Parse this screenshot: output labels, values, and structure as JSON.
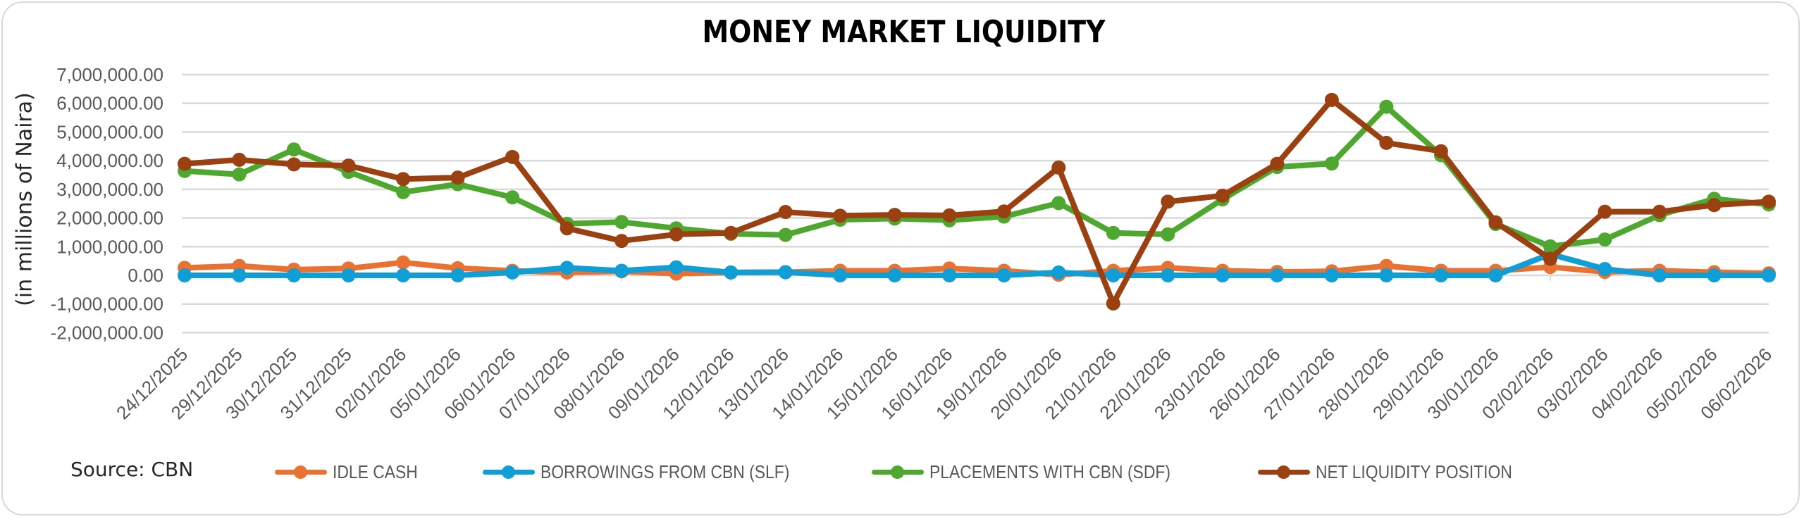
{
  "title": "MONEY MARKET LIQUIDITY",
  "source_note": "Source: CBN",
  "colors": {
    "idle_cash": "#E97132",
    "slf": "#0F9ED5",
    "sdf": "#4EA72E",
    "net": "#9A4011",
    "grid": "#d9d9d9",
    "axis_text": "#595959"
  },
  "legend": [
    {
      "label": "IDLE CASH",
      "color": "#E97132"
    },
    {
      "label": "BORROWINGS FROM CBN (SLF)",
      "color": "#0F9ED5"
    },
    {
      "label": "PLACEMENTS WITH CBN (SDF)",
      "color": "#4EA72E"
    },
    {
      "label": "NET LIQUIDITY POSITION",
      "color": "#9A4011"
    }
  ],
  "chart_data": {
    "type": "line",
    "title": "MONEY MARKET LIQUIDITY",
    "xlabel": "",
    "ylabel": "(in millions of Naira)",
    "ylim": [
      -2000000,
      7000000
    ],
    "yticks": [
      7000000,
      6000000,
      5000000,
      4000000,
      3000000,
      2000000,
      1000000,
      0,
      -1000000,
      -2000000
    ],
    "ytick_labels": [
      "7,000,000.00",
      "6,000,000.00",
      "5,000,000.00",
      "4,000,000.00",
      "3,000,000.00",
      "2,000,000.00",
      "1,000,000.00",
      "0.00",
      "-1,000,000.00",
      "-2,000,000.00"
    ],
    "grid": true,
    "legend_position": "bottom",
    "categories": [
      "24/12/2025",
      "29/12/2025",
      "30/12/2025",
      "31/12/2025",
      "02/01/2026",
      "05/01/2026",
      "06/01/2026",
      "07/01/2026",
      "08/01/2026",
      "09/01/2026",
      "12/01/2026",
      "13/01/2026",
      "14/01/2026",
      "15/01/2026",
      "16/01/2026",
      "19/01/2026",
      "20/01/2026",
      "21/01/2026",
      "22/01/2026",
      "23/01/2026",
      "26/01/2026",
      "27/01/2026",
      "28/01/2026",
      "29/01/2026",
      "30/01/2026",
      "02/02/2026",
      "03/02/2026",
      "04/02/2026",
      "05/02/2026",
      "06/02/2026"
    ],
    "series": [
      {
        "name": "IDLE CASH",
        "color": "#E97132",
        "values": [
          260000,
          330000,
          200000,
          240000,
          450000,
          250000,
          160000,
          100000,
          140000,
          60000,
          100000,
          110000,
          160000,
          160000,
          240000,
          160000,
          20000,
          160000,
          260000,
          160000,
          120000,
          140000,
          330000,
          160000,
          160000,
          290000,
          120000,
          160000,
          110000,
          70000
        ]
      },
      {
        "name": "BORROWINGS FROM CBN (SLF)",
        "color": "#0F9ED5",
        "values": [
          0,
          0,
          0,
          0,
          0,
          0,
          100000,
          260000,
          160000,
          280000,
          100000,
          110000,
          0,
          0,
          0,
          0,
          100000,
          0,
          0,
          0,
          0,
          0,
          0,
          0,
          0,
          740000,
          220000,
          0,
          0,
          0
        ]
      },
      {
        "name": "PLACEMENTS WITH CBN (SDF)",
        "color": "#4EA72E",
        "values": [
          3640000,
          3520000,
          4390000,
          3610000,
          2900000,
          3180000,
          2720000,
          1800000,
          1860000,
          1640000,
          1450000,
          1410000,
          1940000,
          1980000,
          1920000,
          2050000,
          2520000,
          1480000,
          1430000,
          2650000,
          3780000,
          3900000,
          5880000,
          4190000,
          1790000,
          1010000,
          1250000,
          2100000,
          2670000,
          2470000
        ]
      },
      {
        "name": "NET LIQUIDITY POSITION",
        "color": "#9A4011",
        "values": [
          3890000,
          4030000,
          3870000,
          3830000,
          3360000,
          3410000,
          4130000,
          1640000,
          1200000,
          1430000,
          1480000,
          2210000,
          2080000,
          2110000,
          2090000,
          2230000,
          3760000,
          -980000,
          2570000,
          2780000,
          3890000,
          6120000,
          4620000,
          4330000,
          1850000,
          580000,
          2220000,
          2220000,
          2450000,
          2570000
        ]
      }
    ]
  }
}
